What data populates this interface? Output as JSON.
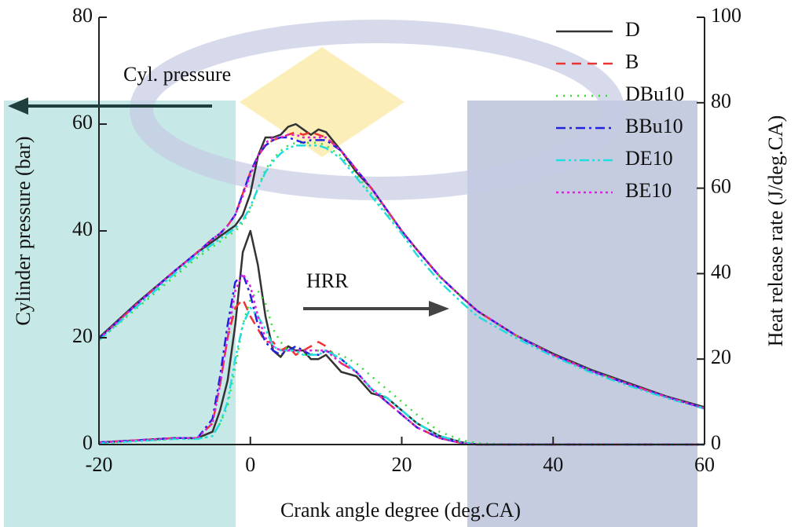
{
  "chart_data": {
    "type": "line",
    "x_label": "Crank angle degree (deg.CA)",
    "y_label": "Cylinder pressure (bar)",
    "y2_label": "Heat release rate (J/deg.CA)",
    "annotations": [
      "Cyl. pressure",
      "HRR"
    ],
    "xlim": [
      -20,
      60
    ],
    "xticks": [
      -20,
      0,
      20,
      40,
      60
    ],
    "ylim": [
      0,
      80
    ],
    "yticks": [
      0,
      20,
      40,
      60,
      80
    ],
    "y2lim": [
      0,
      100
    ],
    "y2ticks": [
      0,
      20,
      40,
      60,
      80,
      100
    ],
    "grid": false,
    "legend": "upper right",
    "x": [
      -20,
      -15,
      -10,
      -7,
      -5,
      -4,
      -3,
      -2,
      -1,
      0,
      1,
      2,
      3,
      4,
      5,
      6,
      7,
      8,
      9,
      10,
      12,
      14,
      16,
      18,
      20,
      22,
      25,
      28,
      30,
      35,
      40,
      45,
      50,
      55,
      60
    ],
    "series": [
      {
        "name": "D",
        "color": "#333333",
        "dash": "none",
        "values": [
          20,
          26.5,
          32.5,
          36,
          38,
          39,
          40,
          41,
          43,
          47,
          54,
          57.5,
          57.5,
          58,
          59.5,
          60,
          59,
          58,
          59,
          58.5,
          55,
          51,
          48,
          44,
          40,
          36.5,
          31.5,
          27.5,
          25,
          20.5,
          17,
          14,
          11.5,
          9,
          7
        ]
      },
      {
        "name": "B",
        "color": "#ee3333",
        "dash": "12,8",
        "values": [
          19.8,
          26.3,
          32.5,
          36,
          38.5,
          39.5,
          41,
          43,
          47,
          51,
          54,
          56,
          57,
          57.5,
          58,
          58.5,
          58,
          58.5,
          58,
          57.5,
          55,
          51.5,
          48,
          44,
          40,
          36.5,
          31.5,
          27.5,
          25,
          20.5,
          16.8,
          13.8,
          11.3,
          8.9,
          6.8
        ]
      },
      {
        "name": "DBu10",
        "color": "#33dd33",
        "dash": "2,7",
        "values": [
          19.5,
          25.5,
          31.5,
          35,
          37,
          38,
          39,
          40,
          41.5,
          44,
          48,
          51.5,
          53.5,
          55,
          56,
          56.5,
          56.5,
          56.5,
          56.5,
          56,
          54,
          50.5,
          47,
          43.5,
          40,
          36.5,
          31.5,
          27.5,
          25,
          20.5,
          16.8,
          13.8,
          11.3,
          8.9,
          6.8
        ]
      },
      {
        "name": "BBu10",
        "color": "#2222dd",
        "dash": "12,5,3,5",
        "values": [
          19.8,
          26.3,
          32.5,
          36,
          38.5,
          39.5,
          41,
          43,
          47,
          51,
          54,
          56,
          57,
          57.5,
          57.5,
          57,
          56.5,
          57,
          57,
          57,
          55,
          51.5,
          48,
          44,
          40,
          36.5,
          31.5,
          27.5,
          25,
          20.5,
          16.8,
          13.8,
          11.3,
          8.9,
          6.8
        ]
      },
      {
        "name": "DE10",
        "color": "#22dddd",
        "dash": "12,4,3,4,3,4",
        "values": [
          19.5,
          25.8,
          32,
          35.5,
          37.5,
          38.5,
          39.5,
          40.5,
          42,
          44.5,
          48,
          51,
          53,
          54.5,
          55.5,
          56,
          56,
          56,
          56,
          55.5,
          53.5,
          50,
          46.5,
          43,
          39.5,
          35.5,
          30.5,
          26.5,
          24,
          20,
          16.5,
          13.5,
          11,
          8.7,
          6.7
        ]
      },
      {
        "name": "BE10",
        "color": "#dd22dd",
        "dash": "3,4",
        "values": [
          19.8,
          26.3,
          32.5,
          36,
          38.5,
          39.5,
          41,
          43,
          46.5,
          50.5,
          54,
          56.5,
          57.5,
          57.5,
          58,
          58,
          57.5,
          57.5,
          57.5,
          57.5,
          55,
          51.5,
          48,
          44,
          40,
          36.5,
          31.5,
          27.5,
          25,
          20.5,
          16.8,
          13.8,
          11.3,
          8.9,
          6.8
        ]
      },
      {
        "name": "D",
        "axis": "y2",
        "color": "#333333",
        "dash": "none",
        "values": [
          0.5,
          1,
          1.5,
          1.5,
          3,
          8,
          15,
          28,
          45,
          50,
          42,
          30,
          22,
          20.5,
          23,
          22,
          22,
          20,
          20,
          21,
          17,
          16,
          12,
          11,
          8,
          5,
          2,
          0.5,
          0,
          0,
          0,
          0,
          0,
          0,
          0
        ]
      },
      {
        "name": "B",
        "axis": "y2",
        "color": "#ee3333",
        "dash": "12,8",
        "values": [
          0.5,
          1,
          1.5,
          1.5,
          5,
          14,
          25,
          32,
          34,
          30,
          27,
          24,
          24,
          22,
          23,
          21,
          22,
          23,
          24,
          23,
          19,
          17,
          13,
          10,
          7,
          4,
          1.5,
          0.3,
          0,
          0,
          0,
          0,
          0,
          0,
          0
        ]
      },
      {
        "name": "DBu10",
        "axis": "y2",
        "color": "#33dd33",
        "dash": "2,7",
        "values": [
          0.3,
          0.8,
          1.3,
          1.3,
          2,
          5,
          9,
          18,
          28,
          34,
          36,
          33,
          27,
          24,
          22,
          22,
          21,
          21,
          22,
          22,
          21,
          19,
          16,
          13,
          10,
          7,
          3,
          1,
          0.3,
          0,
          0,
          0,
          0,
          0,
          0
        ]
      },
      {
        "name": "BBu10",
        "axis": "y2",
        "color": "#2222dd",
        "dash": "12,5,3,5",
        "values": [
          0.5,
          1,
          1.5,
          1.5,
          6,
          16,
          28,
          38,
          40,
          35,
          28,
          24,
          22,
          21,
          22,
          23,
          22,
          21,
          21,
          22,
          20,
          17,
          13,
          10,
          7,
          4,
          1.5,
          0.3,
          0,
          0,
          0,
          0,
          0,
          0,
          0
        ]
      },
      {
        "name": "DE10",
        "axis": "y2",
        "color": "#22dddd",
        "dash": "12,4,3,4,3,4",
        "values": [
          0.3,
          0.8,
          1.3,
          1.3,
          2,
          5,
          10,
          20,
          28,
          32,
          30,
          27,
          23,
          22,
          22,
          22,
          21,
          21,
          21,
          22,
          20,
          17,
          13,
          11,
          8,
          5,
          2,
          0.5,
          0,
          0,
          0,
          0,
          0,
          0,
          0
        ]
      },
      {
        "name": "BE10",
        "axis": "y2",
        "color": "#dd22dd",
        "dash": "3,4",
        "values": [
          0.5,
          1,
          1.5,
          1.5,
          5,
          14,
          25,
          36,
          40,
          37,
          30,
          25,
          23,
          22,
          22,
          22,
          22,
          22,
          22,
          22,
          19,
          17,
          13,
          10,
          7,
          4,
          1.5,
          0.3,
          0,
          0,
          0,
          0,
          0,
          0,
          0
        ]
      }
    ]
  }
}
